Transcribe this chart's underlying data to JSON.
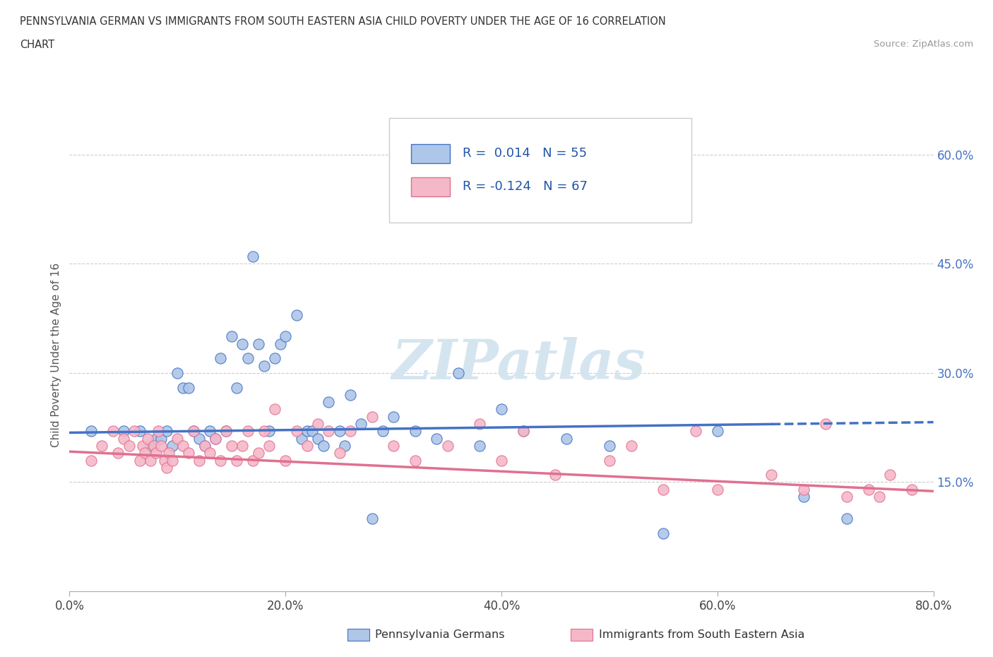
{
  "title_line1": "PENNSYLVANIA GERMAN VS IMMIGRANTS FROM SOUTH EASTERN ASIA CHILD POVERTY UNDER THE AGE OF 16 CORRELATION",
  "title_line2": "CHART",
  "source_text": "Source: ZipAtlas.com",
  "ylabel": "Child Poverty Under the Age of 16",
  "legend_label_blue": "Pennsylvania Germans",
  "legend_label_pink": "Immigrants from South Eastern Asia",
  "R_blue": "0.014",
  "N_blue": "55",
  "R_pink": "-0.124",
  "N_pink": "67",
  "xlim": [
    0.0,
    0.8
  ],
  "ylim": [
    0.0,
    0.65
  ],
  "yticks": [
    0.15,
    0.3,
    0.45,
    0.6
  ],
  "xticks": [
    0.0,
    0.2,
    0.4,
    0.6,
    0.8
  ],
  "color_blue": "#aec6e8",
  "color_pink": "#f5b8c8",
  "line_blue": "#4472c4",
  "line_pink": "#e07090",
  "watermark_color": "#d5e5f0",
  "blue_intercept": 0.218,
  "blue_slope": 0.018,
  "pink_intercept": 0.192,
  "pink_slope": -0.068,
  "blue_scatter_x": [
    0.02,
    0.05,
    0.065,
    0.075,
    0.08,
    0.085,
    0.09,
    0.095,
    0.1,
    0.105,
    0.11,
    0.115,
    0.12,
    0.125,
    0.13,
    0.135,
    0.14,
    0.145,
    0.15,
    0.155,
    0.16,
    0.165,
    0.17,
    0.175,
    0.18,
    0.185,
    0.19,
    0.195,
    0.2,
    0.21,
    0.215,
    0.22,
    0.225,
    0.23,
    0.235,
    0.24,
    0.25,
    0.255,
    0.26,
    0.27,
    0.28,
    0.29,
    0.3,
    0.32,
    0.34,
    0.36,
    0.38,
    0.4,
    0.42,
    0.46,
    0.5,
    0.55,
    0.6,
    0.68,
    0.72
  ],
  "blue_scatter_y": [
    0.22,
    0.22,
    0.22,
    0.2,
    0.21,
    0.21,
    0.22,
    0.2,
    0.3,
    0.28,
    0.28,
    0.22,
    0.21,
    0.2,
    0.22,
    0.21,
    0.32,
    0.22,
    0.35,
    0.28,
    0.34,
    0.32,
    0.46,
    0.34,
    0.31,
    0.22,
    0.32,
    0.34,
    0.35,
    0.38,
    0.21,
    0.22,
    0.22,
    0.21,
    0.2,
    0.26,
    0.22,
    0.2,
    0.27,
    0.23,
    0.1,
    0.22,
    0.24,
    0.22,
    0.21,
    0.3,
    0.2,
    0.25,
    0.22,
    0.21,
    0.2,
    0.08,
    0.22,
    0.13,
    0.1
  ],
  "pink_scatter_x": [
    0.02,
    0.03,
    0.04,
    0.045,
    0.05,
    0.055,
    0.06,
    0.065,
    0.068,
    0.07,
    0.072,
    0.075,
    0.078,
    0.08,
    0.082,
    0.085,
    0.088,
    0.09,
    0.092,
    0.095,
    0.1,
    0.105,
    0.11,
    0.115,
    0.12,
    0.125,
    0.13,
    0.135,
    0.14,
    0.145,
    0.15,
    0.155,
    0.16,
    0.165,
    0.17,
    0.175,
    0.18,
    0.185,
    0.19,
    0.2,
    0.21,
    0.22,
    0.23,
    0.24,
    0.25,
    0.26,
    0.28,
    0.3,
    0.32,
    0.35,
    0.38,
    0.4,
    0.42,
    0.45,
    0.5,
    0.52,
    0.55,
    0.58,
    0.6,
    0.65,
    0.68,
    0.7,
    0.72,
    0.74,
    0.75,
    0.76,
    0.78
  ],
  "pink_scatter_y": [
    0.18,
    0.2,
    0.22,
    0.19,
    0.21,
    0.2,
    0.22,
    0.18,
    0.2,
    0.19,
    0.21,
    0.18,
    0.2,
    0.19,
    0.22,
    0.2,
    0.18,
    0.17,
    0.19,
    0.18,
    0.21,
    0.2,
    0.19,
    0.22,
    0.18,
    0.2,
    0.19,
    0.21,
    0.18,
    0.22,
    0.2,
    0.18,
    0.2,
    0.22,
    0.18,
    0.19,
    0.22,
    0.2,
    0.25,
    0.18,
    0.22,
    0.2,
    0.23,
    0.22,
    0.19,
    0.22,
    0.24,
    0.2,
    0.18,
    0.2,
    0.23,
    0.18,
    0.22,
    0.16,
    0.18,
    0.2,
    0.14,
    0.22,
    0.14,
    0.16,
    0.14,
    0.23,
    0.13,
    0.14,
    0.13,
    0.16,
    0.14
  ]
}
